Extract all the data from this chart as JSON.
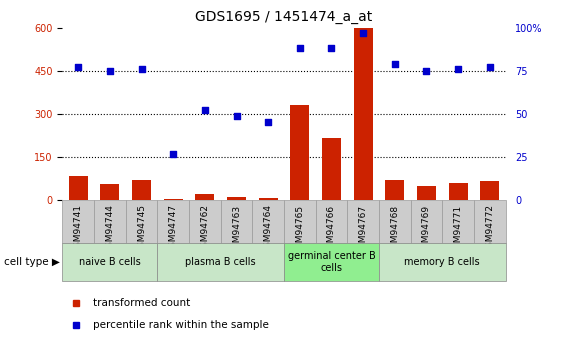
{
  "title": "GDS1695 / 1451474_a_at",
  "samples": [
    "GSM94741",
    "GSM94744",
    "GSM94745",
    "GSM94747",
    "GSM94762",
    "GSM94763",
    "GSM94764",
    "GSM94765",
    "GSM94766",
    "GSM94767",
    "GSM94768",
    "GSM94769",
    "GSM94771",
    "GSM94772"
  ],
  "transformed_count": [
    85,
    55,
    70,
    5,
    20,
    10,
    8,
    330,
    215,
    600,
    70,
    50,
    60,
    65
  ],
  "percentile_rank": [
    77,
    75,
    76,
    27,
    52,
    49,
    45,
    88,
    88,
    97,
    79,
    75,
    76,
    77
  ],
  "bar_color": "#cc2200",
  "scatter_color": "#0000cc",
  "ylim_left": [
    0,
    600
  ],
  "ylim_right": [
    0,
    100
  ],
  "yticks_left": [
    0,
    150,
    300,
    450,
    600
  ],
  "yticks_right": [
    0,
    25,
    50,
    75,
    100
  ],
  "yticklabels_right": [
    "0",
    "25",
    "50",
    "75",
    "100%"
  ],
  "dotted_vals": [
    150,
    300,
    450
  ],
  "groups": [
    {
      "label": "naive B cells",
      "start": 0,
      "end": 3
    },
    {
      "label": "plasma B cells",
      "start": 3,
      "end": 7
    },
    {
      "label": "germinal center B\ncells",
      "start": 7,
      "end": 10
    },
    {
      "label": "memory B cells",
      "start": 10,
      "end": 14
    }
  ],
  "group_colors": [
    "#c8e6c8",
    "#c8e6c8",
    "#90ee90",
    "#c8e6c8"
  ],
  "cell_type_label": "cell type",
  "legend_transformed": "transformed count",
  "legend_percentile": "percentile rank within the sample",
  "bar_color_legend": "#cc2200",
  "scatter_color_legend": "#0000cc",
  "bar_width": 0.6,
  "left_tick_color": "#cc2200",
  "right_tick_color": "#0000cc",
  "tick_fontsize": 7,
  "title_fontsize": 10,
  "group_label_fontsize": 7,
  "xtick_fontsize": 6.5,
  "sample_box_color": "#cccccc",
  "sample_box_edge": "#999999"
}
